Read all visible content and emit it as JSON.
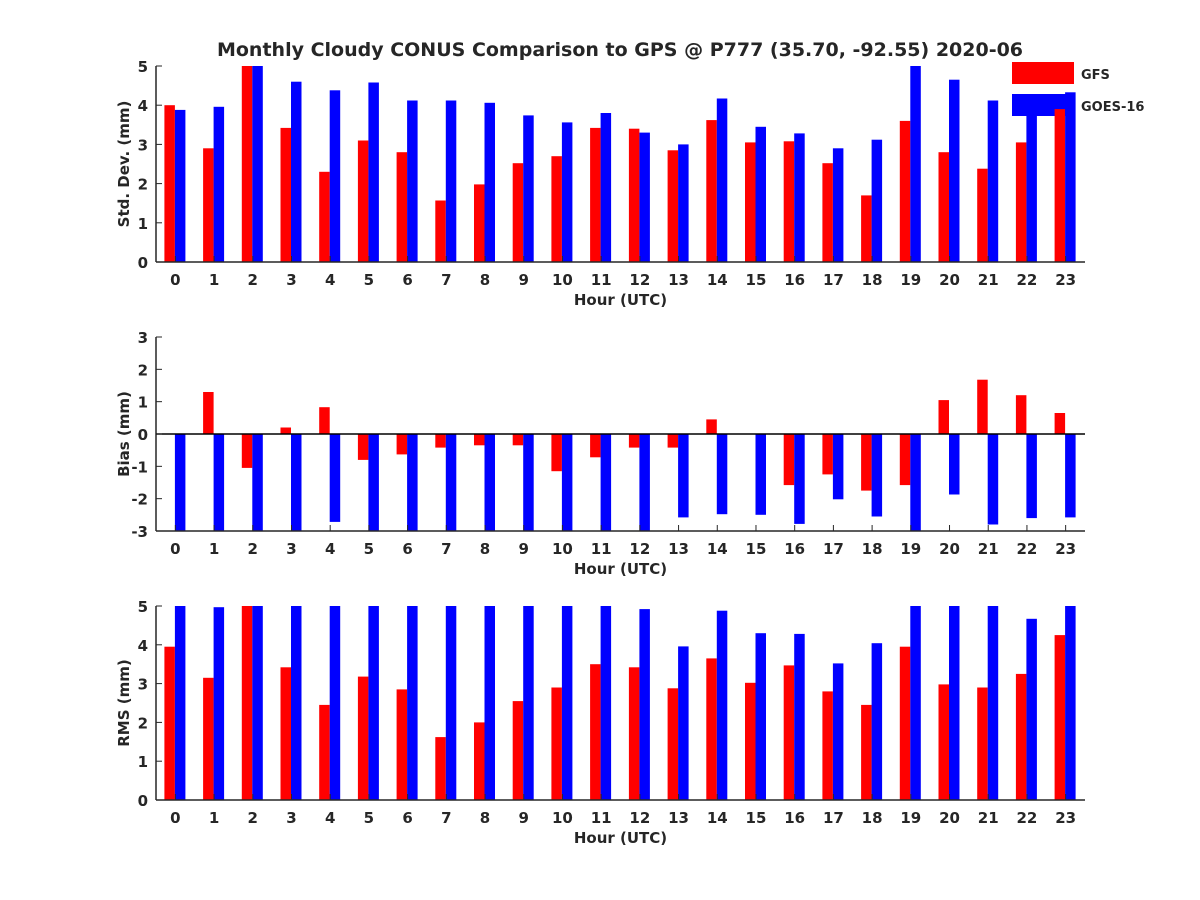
{
  "figure": {
    "title": "Monthly Cloudy CONUS Comparison to GPS @ P777 (35.70, -92.55) 2020-06",
    "legend": [
      {
        "label": "GFS",
        "color": "#ff0000"
      },
      {
        "label": "GOES-16",
        "color": "#0000ff"
      }
    ]
  },
  "chart_data": [
    {
      "type": "bar",
      "title": "Monthly Cloudy CONUS Comparison to GPS @ P777 (35.70, -92.55) 2020-06",
      "xlabel": "Hour (UTC)",
      "ylabel": "Std. Dev. (mm)",
      "ylim": [
        0,
        5
      ],
      "yticks": [
        0,
        1,
        2,
        3,
        4,
        5
      ],
      "categories": [
        "0",
        "1",
        "2",
        "3",
        "4",
        "5",
        "6",
        "7",
        "8",
        "9",
        "10",
        "11",
        "12",
        "13",
        "14",
        "15",
        "16",
        "17",
        "18",
        "19",
        "20",
        "21",
        "22",
        "23"
      ],
      "series": [
        {
          "name": "GFS",
          "color": "#ff0000",
          "values": [
            4.0,
            2.9,
            5.0,
            3.42,
            2.3,
            3.1,
            2.8,
            1.57,
            1.98,
            2.52,
            2.7,
            3.42,
            3.4,
            2.85,
            3.62,
            3.05,
            3.08,
            2.52,
            1.7,
            3.6,
            2.8,
            2.38,
            3.05,
            3.9
          ]
        },
        {
          "name": "GOES-16",
          "color": "#0000ff",
          "values": [
            3.88,
            3.96,
            5.0,
            4.6,
            4.38,
            4.58,
            4.12,
            4.12,
            4.06,
            3.74,
            3.56,
            3.8,
            3.3,
            3.0,
            4.17,
            3.45,
            3.28,
            2.9,
            3.12,
            5.0,
            4.65,
            4.12,
            3.86,
            4.33
          ]
        }
      ],
      "legend_position": "top-right-outside"
    },
    {
      "type": "bar",
      "title": "",
      "xlabel": "Hour (UTC)",
      "ylabel": "Bias (mm)",
      "ylim": [
        -3,
        3
      ],
      "yticks": [
        -3,
        -2,
        -1,
        0,
        1,
        2,
        3
      ],
      "categories": [
        "0",
        "1",
        "2",
        "3",
        "4",
        "5",
        "6",
        "7",
        "8",
        "9",
        "10",
        "11",
        "12",
        "13",
        "14",
        "15",
        "16",
        "17",
        "18",
        "19",
        "20",
        "21",
        "22",
        "23"
      ],
      "series": [
        {
          "name": "GFS",
          "color": "#ff0000",
          "values": [
            0.0,
            1.3,
            -1.05,
            0.2,
            0.83,
            -0.8,
            -0.63,
            -0.42,
            -0.35,
            -0.35,
            -1.15,
            -0.72,
            -0.42,
            -0.42,
            0.45,
            0.0,
            -1.58,
            -1.25,
            -1.75,
            -1.58,
            1.05,
            1.68,
            1.2,
            0.65
          ]
        },
        {
          "name": "GOES-16",
          "color": "#0000ff",
          "values": [
            -3.0,
            -3.0,
            -3.0,
            -3.0,
            -2.72,
            -3.0,
            -3.0,
            -3.0,
            -3.0,
            -3.0,
            -3.0,
            -3.0,
            -3.0,
            -2.58,
            -2.48,
            -2.5,
            -2.78,
            -2.02,
            -2.55,
            -3.0,
            -1.87,
            -2.8,
            -2.6,
            -2.58
          ]
        }
      ]
    },
    {
      "type": "bar",
      "title": "",
      "xlabel": "Hour (UTC)",
      "ylabel": "RMS (mm)",
      "ylim": [
        0,
        5
      ],
      "yticks": [
        0,
        1,
        2,
        3,
        4,
        5
      ],
      "categories": [
        "0",
        "1",
        "2",
        "3",
        "4",
        "5",
        "6",
        "7",
        "8",
        "9",
        "10",
        "11",
        "12",
        "13",
        "14",
        "15",
        "16",
        "17",
        "18",
        "19",
        "20",
        "21",
        "22",
        "23"
      ],
      "series": [
        {
          "name": "GFS",
          "color": "#ff0000",
          "values": [
            3.95,
            3.15,
            5.0,
            3.42,
            2.45,
            3.18,
            2.85,
            1.62,
            2.0,
            2.55,
            2.9,
            3.5,
            3.42,
            2.88,
            3.65,
            3.02,
            3.47,
            2.8,
            2.45,
            3.95,
            2.98,
            2.9,
            3.25,
            4.25
          ]
        },
        {
          "name": "GOES-16",
          "color": "#0000ff",
          "values": [
            5.0,
            4.97,
            5.0,
            5.0,
            5.0,
            5.0,
            5.0,
            5.0,
            5.0,
            5.0,
            5.0,
            5.0,
            4.92,
            3.96,
            4.88,
            4.3,
            4.28,
            3.52,
            4.04,
            5.0,
            5.0,
            5.0,
            4.67,
            5.0
          ]
        }
      ]
    }
  ]
}
